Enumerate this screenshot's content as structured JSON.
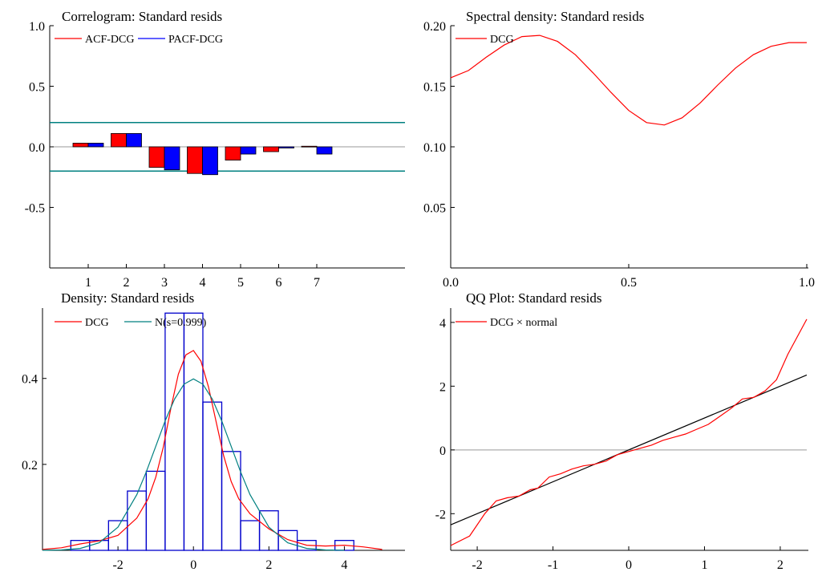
{
  "chart_data": [
    {
      "type": "bar",
      "title": "Correlogram: Standard resids",
      "categories": [
        "1",
        "2",
        "3",
        "4",
        "5",
        "6",
        "7"
      ],
      "series": [
        {
          "name": "ACF-DCG",
          "color": "#ff0000",
          "values": [
            0.03,
            0.11,
            -0.17,
            -0.22,
            -0.11,
            -0.04,
            0.005
          ]
        },
        {
          "name": "PACF-DCG",
          "color": "#0000ff",
          "values": [
            0.03,
            0.11,
            -0.19,
            -0.23,
            -0.06,
            -0.01,
            -0.06
          ]
        }
      ],
      "confidence_band": [
        0.2,
        -0.2
      ],
      "band_color": "#008080",
      "ylim": [
        -1.0,
        1.0
      ],
      "yticks": [
        1.0,
        0.5,
        0.0,
        -0.5
      ],
      "ytick_labels": [
        "1.0",
        "0.5",
        "0.0",
        "-0.5"
      ],
      "xlabel": "",
      "ylabel": "",
      "legend_placement": "top-left"
    },
    {
      "type": "line",
      "title": "Spectral density: Standard resids",
      "series": [
        {
          "name": "DCG",
          "color": "#ff0000",
          "x": [
            0.0,
            0.05,
            0.1,
            0.15,
            0.2,
            0.25,
            0.3,
            0.35,
            0.4,
            0.45,
            0.5,
            0.55,
            0.6,
            0.65,
            0.7,
            0.75,
            0.8,
            0.85,
            0.9,
            0.95,
            1.0
          ],
          "y": [
            0.157,
            0.163,
            0.174,
            0.184,
            0.191,
            0.192,
            0.187,
            0.176,
            0.161,
            0.145,
            0.13,
            0.12,
            0.118,
            0.124,
            0.136,
            0.151,
            0.165,
            0.176,
            0.183,
            0.186,
            0.186
          ]
        }
      ],
      "xlim": [
        0.0,
        1.0
      ],
      "ylim": [
        0.0,
        0.2
      ],
      "xticks": [
        0.0,
        0.5,
        1.0
      ],
      "xtick_labels": [
        "0.0",
        "0.5",
        "1.0"
      ],
      "yticks": [
        0.2,
        0.15,
        0.1,
        0.05
      ],
      "ytick_labels": [
        "0.20",
        "0.15",
        "0.10",
        "0.05"
      ],
      "xlabel": "",
      "ylabel": "",
      "legend_placement": "top-left"
    },
    {
      "type": "bar",
      "title": "Density: Standard resids",
      "histogram": {
        "color": "#0000cc",
        "bin_width": 0.5,
        "bin_starts": [
          -3.25,
          -2.75,
          -2.25,
          -1.75,
          -1.25,
          -0.75,
          -0.25,
          0.25,
          0.75,
          1.25,
          1.75,
          2.25,
          2.75,
          3.25,
          3.75
        ],
        "values": [
          0.023,
          0.023,
          0.069,
          0.138,
          0.184,
          0.552,
          0.552,
          0.345,
          0.23,
          0.069,
          0.092,
          0.046,
          0.023,
          0.0,
          0.023
        ]
      },
      "series": [
        {
          "name": "DCG",
          "color": "#ff0000",
          "x": [
            -4.0,
            -3.5,
            -3.0,
            -2.5,
            -2.0,
            -1.5,
            -1.2,
            -1.0,
            -0.8,
            -0.6,
            -0.4,
            -0.2,
            0.0,
            0.2,
            0.4,
            0.6,
            0.8,
            1.0,
            1.2,
            1.5,
            2.0,
            2.5,
            3.0,
            3.5,
            4.0,
            4.5,
            5.0
          ],
          "y": [
            0.002,
            0.006,
            0.015,
            0.022,
            0.035,
            0.075,
            0.12,
            0.17,
            0.24,
            0.33,
            0.41,
            0.455,
            0.465,
            0.44,
            0.38,
            0.3,
            0.22,
            0.16,
            0.12,
            0.085,
            0.05,
            0.025,
            0.012,
            0.01,
            0.012,
            0.008,
            0.002
          ]
        },
        {
          "name": "N(s=0.999)",
          "color": "#008080",
          "x": [
            -4.0,
            -3.5,
            -3.0,
            -2.5,
            -2.0,
            -1.5,
            -1.25,
            -1.0,
            -0.75,
            -0.5,
            -0.25,
            0.0,
            0.25,
            0.5,
            0.75,
            1.0,
            1.25,
            1.5,
            2.0,
            2.5,
            3.0,
            3.5,
            4.0
          ],
          "y": [
            0.0001,
            0.0009,
            0.0044,
            0.0175,
            0.054,
            0.1295,
            0.1826,
            0.242,
            0.3011,
            0.352,
            0.3866,
            0.399,
            0.3866,
            0.352,
            0.3011,
            0.242,
            0.1826,
            0.1295,
            0.054,
            0.0175,
            0.0044,
            0.0009,
            0.0001
          ]
        }
      ],
      "xlim": [
        -4.0,
        5.5
      ],
      "ylim": [
        0.0,
        0.56
      ],
      "xticks": [
        -2,
        0,
        2,
        4
      ],
      "xtick_labels": [
        "-2",
        "0",
        "2",
        "4"
      ],
      "yticks": [
        0.4,
        0.2
      ],
      "ytick_labels": [
        "0.4",
        "0.2"
      ],
      "xlabel": "",
      "ylabel": "",
      "legend_placement": "top-left"
    },
    {
      "type": "line",
      "title": "QQ Plot: Standard resids",
      "series": [
        {
          "name": "DCG × normal",
          "color": "#ff0000",
          "x": [
            -2.35,
            -2.1,
            -1.9,
            -1.75,
            -1.6,
            -1.45,
            -1.3,
            -1.2,
            -1.05,
            -0.9,
            -0.75,
            -0.6,
            -0.45,
            -0.3,
            -0.15,
            0.0,
            0.15,
            0.3,
            0.45,
            0.6,
            0.75,
            0.9,
            1.05,
            1.2,
            1.35,
            1.5,
            1.65,
            1.8,
            1.95,
            2.1,
            2.35
          ],
          "y": [
            -3.0,
            -2.7,
            -2.0,
            -1.6,
            -1.5,
            -1.45,
            -1.25,
            -1.2,
            -0.85,
            -0.75,
            -0.6,
            -0.5,
            -0.45,
            -0.35,
            -0.15,
            -0.05,
            0.05,
            0.15,
            0.3,
            0.4,
            0.5,
            0.65,
            0.8,
            1.05,
            1.3,
            1.6,
            1.65,
            1.85,
            2.2,
            3.0,
            4.1
          ]
        },
        {
          "name": "",
          "color": "#000000",
          "x": [
            -2.35,
            2.35
          ],
          "y": [
            -2.35,
            2.35
          ]
        }
      ],
      "hline": 0,
      "xlim": [
        -2.35,
        2.35
      ],
      "ylim": [
        -3.15,
        4.45
      ],
      "xticks": [
        -2,
        -1,
        0,
        1,
        2
      ],
      "xtick_labels": [
        "-2",
        "-1",
        "0",
        "1",
        "2"
      ],
      "yticks": [
        4,
        2,
        0,
        -2
      ],
      "ytick_labels": [
        "4",
        "2",
        "0",
        "-2"
      ],
      "xlabel": "",
      "ylabel": "",
      "legend_placement": "top-left"
    }
  ]
}
